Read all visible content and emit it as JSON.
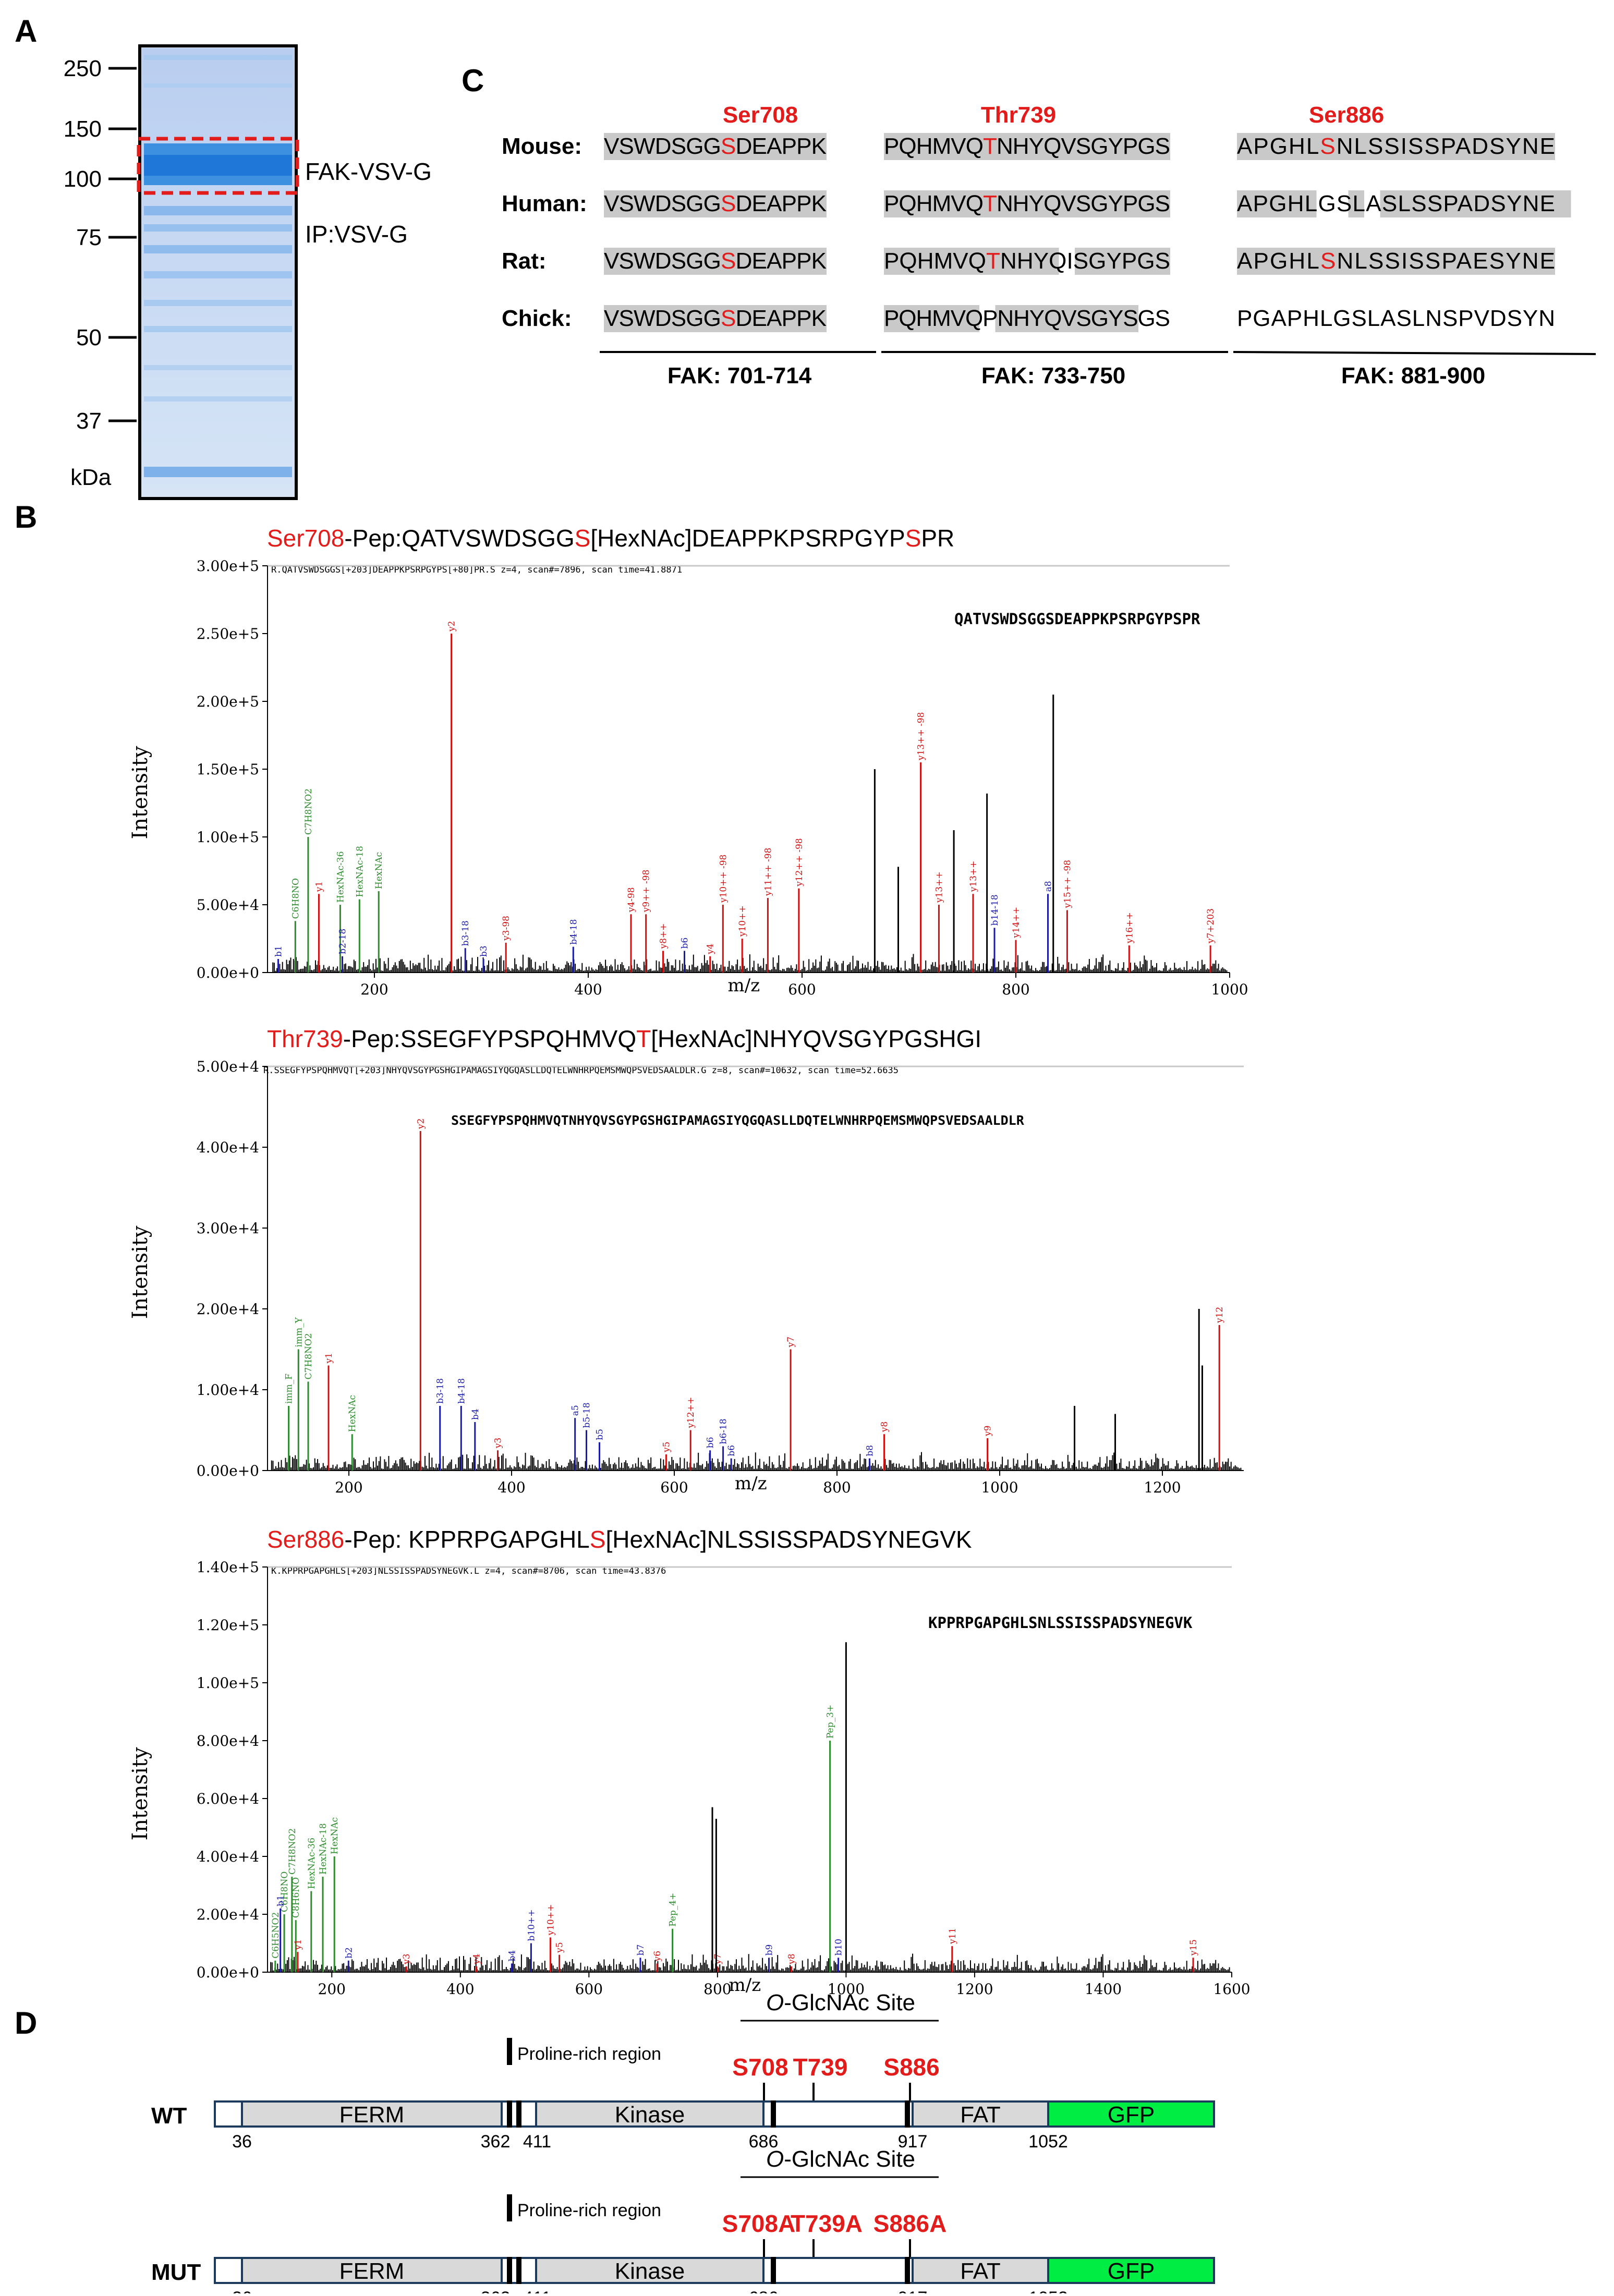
{
  "panels": {
    "A": "A",
    "B": "B",
    "C": "C",
    "D": "D"
  },
  "panel_a": {
    "markers": [
      "250",
      "150",
      "100",
      "75",
      "50",
      "37"
    ],
    "unit": "kDa",
    "band_label": "FAK-VSV-G",
    "ip_label": "IP:VSV-G"
  },
  "panel_c": {
    "sites": [
      "Ser708",
      "Thr739",
      "Ser886"
    ],
    "species": [
      {
        "name": "Mouse:",
        "seq1": [
          "VSWDSGG",
          "S",
          "DEAPPK"
        ],
        "seq2": [
          "PQHMVQ",
          "T",
          "NHYQVSGYPGS"
        ],
        "seq3": [
          "APGHL",
          "S",
          "NLSSISSPADSYNE"
        ]
      },
      {
        "name": "Human:",
        "seq1": [
          "VSWDSGG",
          "S",
          "DEAPPK"
        ],
        "seq2": [
          "PQHMVQ",
          "T",
          "NHYQVSGYPGS"
        ],
        "seq3": [
          "APGHL",
          "GSLASLSSPADSYNE"
        ]
      },
      {
        "name": "Rat:",
        "seq1": [
          "VSWDSGG",
          "S",
          "DEAPPK"
        ],
        "seq2": [
          "PQHMVQ",
          "T",
          "NHYQISGYPGS"
        ],
        "seq3": [
          "APGHL",
          "S",
          "NLSSISSPAESYNE"
        ]
      },
      {
        "name": "Chick:",
        "seq1": [
          "VSWDSGG",
          "S",
          "DEAPPK"
        ],
        "seq2": [
          "PQHMVQPNHYQVSGYSGS"
        ],
        "seq3": [
          "PGAPHLGSLASLNSPVDSYN"
        ]
      }
    ],
    "ranges": [
      "FAK: 701-714",
      "FAK: 733-750",
      "FAK: 881-900"
    ]
  },
  "panel_b": {
    "spectra": [
      {
        "site": "Ser708",
        "title_pre": "-Pep:QATVSWDSGG",
        "title_site": "S",
        "title_mid": "[HexNAc]DEAPPKPSRPGYP",
        "title_site2": "S",
        "title_post": "PR",
        "header": "R.QATVSWDSGGS[+203]DEAPPKPSRPGYPS[+80]PR.S z=4, scan#=7896, scan time=41.8871",
        "peptide": "QATVSWDSGGSDEAPPKPSRPGYPSPR"
      },
      {
        "site": "Thr739",
        "title_pre": "-Pep:SSEGFYPSPQHMVQ",
        "title_site": "T",
        "title_mid": "[HexNAc]NHYQVSGYPGSHGI",
        "title_site2": "",
        "title_post": "",
        "header": "R.SSEGFYPSPQHMVQT[+203]NHYQVSGYPGSHGIPAMAGSIYQGQASLLDQTELWNHRPQEMSMWQPSVEDSAALDLR.G z=8, scan#=10632, scan time=52.6635",
        "peptide": "SSEGFYPSPQHMVQTNHYQVSGYPGSHGIPAMAGSIYQGQASLLDQTELWNHRPQEMSMWQPSVEDSAALDLR"
      },
      {
        "site": "Ser886",
        "title_pre": "-Pep: KPPRPGAPGHL",
        "title_site": "S",
        "title_mid": "[HexNAc]NLSSISSPADSYNEGVK",
        "title_site2": "",
        "title_post": "",
        "header": "K.KPPRPGAPGHLS[+203]NLSSISSPADSYNEGVK.L z=4, scan#=8706, scan time=43.8376",
        "peptide": "KPPRPGAPGHLSNLSSISSPADSYNEGVK"
      }
    ],
    "ylabel": "Intensity",
    "xlabel": "m/z"
  },
  "chart_data": [
    {
      "type": "bar",
      "title": "Ser708-Pep:QATVSWDSGGS[HexNAc]DEAPPKPSRPGYPSPR",
      "xlabel": "m/z",
      "ylabel": "Intensity",
      "xlim": [
        100,
        1000
      ],
      "ylim": [
        0,
        300000
      ],
      "yticks": [
        "0.00e+0",
        "5.00e+4",
        "1.00e+5",
        "1.50e+5",
        "2.00e+5",
        "2.50e+5",
        "3.00e+5"
      ],
      "xticks": [
        "200",
        "400",
        "600",
        "800",
        "1000"
      ],
      "peaks": [
        {
          "mz": 204,
          "i": 60000,
          "label": "HexNAc",
          "color": "#2e8b2e"
        },
        {
          "mz": 186,
          "i": 54000,
          "label": "HexNAc-18",
          "color": "#2e8b2e"
        },
        {
          "mz": 168,
          "i": 50000,
          "label": "HexNAc-36",
          "color": "#2e8b2e"
        },
        {
          "mz": 138,
          "i": 100000,
          "label": "C7H8NO2",
          "color": "#2e8b2e"
        },
        {
          "mz": 126,
          "i": 38000,
          "label": "C6H8NO",
          "color": "#2e8b2e"
        },
        {
          "mz": 110,
          "i": 10000,
          "label": "b1",
          "color": "#1a1aa8"
        },
        {
          "mz": 148,
          "i": 58000,
          "label": "y1",
          "color": "#d01010"
        },
        {
          "mz": 272,
          "i": 250000,
          "label": "y2",
          "color": "#d01010"
        },
        {
          "mz": 170,
          "i": 12000,
          "label": "b2-18",
          "color": "#1a1aa8"
        },
        {
          "mz": 285,
          "i": 18000,
          "label": "b3-18",
          "color": "#1a1aa8"
        },
        {
          "mz": 302,
          "i": 10000,
          "label": "b3",
          "color": "#1a1aa8"
        },
        {
          "mz": 323,
          "i": 22000,
          "label": "y3-98",
          "color": "#d01010"
        },
        {
          "mz": 386,
          "i": 19000,
          "label": "b4-18",
          "color": "#1a1aa8"
        },
        {
          "mz": 440,
          "i": 43000,
          "label": "y4-98",
          "color": "#d01010"
        },
        {
          "mz": 454,
          "i": 43000,
          "label": "y9++ -98",
          "color": "#d01010"
        },
        {
          "mz": 470,
          "i": 16000,
          "label": "y8++",
          "color": "#d01010"
        },
        {
          "mz": 490,
          "i": 16000,
          "label": "b6",
          "color": "#1a1aa8"
        },
        {
          "mz": 514,
          "i": 12000,
          "label": "y4",
          "color": "#d01010"
        },
        {
          "mz": 526,
          "i": 50000,
          "label": "y10++ -98",
          "color": "#d01010"
        },
        {
          "mz": 544,
          "i": 25000,
          "label": "y10++",
          "color": "#d01010"
        },
        {
          "mz": 568,
          "i": 55000,
          "label": "y11++ -98",
          "color": "#d01010"
        },
        {
          "mz": 597,
          "i": 62000,
          "label": "y12++ -98",
          "color": "#d01010"
        },
        {
          "mz": 711,
          "i": 155000,
          "label": "y13++ -98",
          "color": "#d01010"
        },
        {
          "mz": 728,
          "i": 50000,
          "label": "y13++",
          "color": "#d01010"
        },
        {
          "mz": 760,
          "i": 58000,
          "label": "y13++",
          "color": "#d01010"
        },
        {
          "mz": 780,
          "i": 33000,
          "label": "b14-18",
          "color": "#1a1aa8"
        },
        {
          "mz": 800,
          "i": 24000,
          "label": "y14++",
          "color": "#d01010"
        },
        {
          "mz": 830,
          "i": 58000,
          "label": "a8",
          "color": "#1a1aa8"
        },
        {
          "mz": 848,
          "i": 46000,
          "label": "y15++ -98",
          "color": "#d01010"
        },
        {
          "mz": 906,
          "i": 20000,
          "label": "y16++",
          "color": "#d01010"
        },
        {
          "mz": 982,
          "i": 20000,
          "label": "y7+203",
          "color": "#d01010"
        },
        {
          "mz": 835,
          "i": 205000,
          "label": "",
          "color": "#000000"
        },
        {
          "mz": 668,
          "i": 150000,
          "label": "",
          "color": "#000000"
        },
        {
          "mz": 773,
          "i": 132000,
          "label": "",
          "color": "#000000"
        },
        {
          "mz": 742,
          "i": 105000,
          "label": "",
          "color": "#000000"
        },
        {
          "mz": 690,
          "i": 78000,
          "label": "",
          "color": "#000000"
        }
      ]
    },
    {
      "type": "bar",
      "title": "Thr739-Pep:SSEGFYPSPQHMVQT[HexNAc]NHYQVSGYPGSHGI",
      "xlabel": "m/z",
      "ylabel": "Intensity",
      "xlim": [
        100,
        1300
      ],
      "ylim": [
        0,
        50000
      ],
      "yticks": [
        "0.00e+0",
        "1.00e+4",
        "2.00e+4",
        "3.00e+4",
        "4.00e+4",
        "5.00e+4"
      ],
      "xticks": [
        "200",
        "400",
        "600",
        "800",
        "1000",
        "1200"
      ],
      "peaks": [
        {
          "mz": 138,
          "i": 15000,
          "label": "imm_Y",
          "color": "#2e8b2e"
        },
        {
          "mz": 126,
          "i": 8000,
          "label": "imm_F",
          "color": "#2e8b2e"
        },
        {
          "mz": 150,
          "i": 11000,
          "label": "C7H8NO2",
          "color": "#2e8b2e"
        },
        {
          "mz": 204,
          "i": 4500,
          "label": "HexNAc",
          "color": "#2e8b2e"
        },
        {
          "mz": 175,
          "i": 13000,
          "label": "y1",
          "color": "#d01010"
        },
        {
          "mz": 288,
          "i": 42000,
          "label": "y2",
          "color": "#d01010"
        },
        {
          "mz": 312,
          "i": 8000,
          "label": "b3-18",
          "color": "#1a1aa8"
        },
        {
          "mz": 338,
          "i": 8000,
          "label": "b4-18",
          "color": "#1a1aa8"
        },
        {
          "mz": 355,
          "i": 6000,
          "label": "b4",
          "color": "#1a1aa8"
        },
        {
          "mz": 383,
          "i": 2500,
          "label": "y3",
          "color": "#d01010"
        },
        {
          "mz": 478,
          "i": 6500,
          "label": "a5",
          "color": "#1a1aa8"
        },
        {
          "mz": 492,
          "i": 5000,
          "label": "b5-18",
          "color": "#1a1aa8"
        },
        {
          "mz": 508,
          "i": 3500,
          "label": "b5",
          "color": "#1a1aa8"
        },
        {
          "mz": 590,
          "i": 2000,
          "label": "y5",
          "color": "#d01010"
        },
        {
          "mz": 620,
          "i": 5000,
          "label": "y12++",
          "color": "#d01010"
        },
        {
          "mz": 644,
          "i": 2500,
          "label": "b6",
          "color": "#1a1aa8"
        },
        {
          "mz": 660,
          "i": 3000,
          "label": "b6-18",
          "color": "#1a1aa8"
        },
        {
          "mz": 670,
          "i": 1500,
          "label": "b6",
          "color": "#1a1aa8"
        },
        {
          "mz": 743,
          "i": 15000,
          "label": "y7",
          "color": "#d01010"
        },
        {
          "mz": 840,
          "i": 1500,
          "label": "b8",
          "color": "#1a1aa8"
        },
        {
          "mz": 858,
          "i": 4500,
          "label": "y8",
          "color": "#d01010"
        },
        {
          "mz": 985,
          "i": 4000,
          "label": "y9",
          "color": "#d01010"
        },
        {
          "mz": 1270,
          "i": 18000,
          "label": "y12",
          "color": "#d01010"
        },
        {
          "mz": 1245,
          "i": 20000,
          "label": "",
          "color": "#000000"
        },
        {
          "mz": 1249,
          "i": 13000,
          "label": "",
          "color": "#000000"
        },
        {
          "mz": 1092,
          "i": 8000,
          "label": "",
          "color": "#000000"
        },
        {
          "mz": 1142,
          "i": 7000,
          "label": "",
          "color": "#000000"
        }
      ]
    },
    {
      "type": "bar",
      "title": "Ser886-Pep: KPPRPGAPGHLS[HexNAc]NLSSISSPADSYNEGVK",
      "xlabel": "m/z",
      "ylabel": "Intensity",
      "xlim": [
        100,
        1600
      ],
      "ylim": [
        0,
        140000
      ],
      "yticks": [
        "0.00e+0",
        "2.00e+4",
        "4.00e+4",
        "6.00e+4",
        "8.00e+4",
        "1.00e+5",
        "1.20e+5",
        "1.40e+5"
      ],
      "xticks": [
        "200",
        "400",
        "600",
        "800",
        "1000",
        "1200",
        "1400",
        "1600"
      ],
      "peaks": [
        {
          "mz": 204,
          "i": 40000,
          "label": "HexNAc",
          "color": "#2e8b2e"
        },
        {
          "mz": 186,
          "i": 33000,
          "label": "HexNAc-18",
          "color": "#2e8b2e"
        },
        {
          "mz": 168,
          "i": 28000,
          "label": "HexNAc-36",
          "color": "#2e8b2e"
        },
        {
          "mz": 138,
          "i": 33000,
          "label": "C7H8NO2",
          "color": "#2e8b2e"
        },
        {
          "mz": 126,
          "i": 20000,
          "label": "C6H8NO",
          "color": "#2e8b2e"
        },
        {
          "mz": 144,
          "i": 18000,
          "label": "C8H6NO",
          "color": "#2e8b2e"
        },
        {
          "mz": 112,
          "i": 4000,
          "label": "C6H5NO2",
          "color": "#2e8b2e"
        },
        {
          "mz": 120,
          "i": 22000,
          "label": "b1",
          "color": "#1a1aa8"
        },
        {
          "mz": 147,
          "i": 7000,
          "label": "y1",
          "color": "#d01010"
        },
        {
          "mz": 226,
          "i": 4000,
          "label": "b2",
          "color": "#1a1aa8"
        },
        {
          "mz": 316,
          "i": 2000,
          "label": "y3",
          "color": "#d01010"
        },
        {
          "mz": 425,
          "i": 2000,
          "label": "y4",
          "color": "#d01010"
        },
        {
          "mz": 480,
          "i": 3000,
          "label": "b4",
          "color": "#1a1aa8"
        },
        {
          "mz": 510,
          "i": 10000,
          "label": "b10++",
          "color": "#1a1aa8"
        },
        {
          "mz": 540,
          "i": 12000,
          "label": "y10++",
          "color": "#d01010"
        },
        {
          "mz": 554,
          "i": 6000,
          "label": "y5",
          "color": "#d01010"
        },
        {
          "mz": 680,
          "i": 5000,
          "label": "b7",
          "color": "#1a1aa8"
        },
        {
          "mz": 706,
          "i": 3000,
          "label": "y6",
          "color": "#d01010"
        },
        {
          "mz": 730,
          "i": 15000,
          "label": "Pep_4+",
          "color": "#2e8b2e"
        },
        {
          "mz": 800,
          "i": 2000,
          "label": "y7",
          "color": "#d01010"
        },
        {
          "mz": 880,
          "i": 5000,
          "label": "b9",
          "color": "#1a1aa8"
        },
        {
          "mz": 915,
          "i": 2000,
          "label": "y8",
          "color": "#d01010"
        },
        {
          "mz": 975,
          "i": 80000,
          "label": "Pep_3+",
          "color": "#2e8b2e"
        },
        {
          "mz": 988,
          "i": 5000,
          "label": "b10",
          "color": "#1a1aa8"
        },
        {
          "mz": 1165,
          "i": 9000,
          "label": "y11",
          "color": "#d01010"
        },
        {
          "mz": 1540,
          "i": 5000,
          "label": "y15",
          "color": "#d01010"
        },
        {
          "mz": 1000,
          "i": 114000,
          "label": "",
          "color": "#000000"
        },
        {
          "mz": 792,
          "i": 57000,
          "label": "",
          "color": "#000000"
        },
        {
          "mz": 798,
          "i": 53000,
          "label": "",
          "color": "#000000"
        }
      ]
    }
  ],
  "panel_d": {
    "site_label_pre": "O",
    "site_label_post": "-GlcNAc Site",
    "proline": "Proline-rich region",
    "wt": {
      "name": "WT",
      "sites": [
        "S708",
        "T739",
        "S886"
      ]
    },
    "mut": {
      "name": "MUT",
      "sites": [
        "S708A",
        "T739A",
        "S886A"
      ]
    },
    "domains": [
      "FERM",
      "Kinase",
      "FAT",
      "GFP"
    ],
    "positions": [
      "36",
      "362",
      "411",
      "686",
      "917",
      "1052"
    ]
  }
}
